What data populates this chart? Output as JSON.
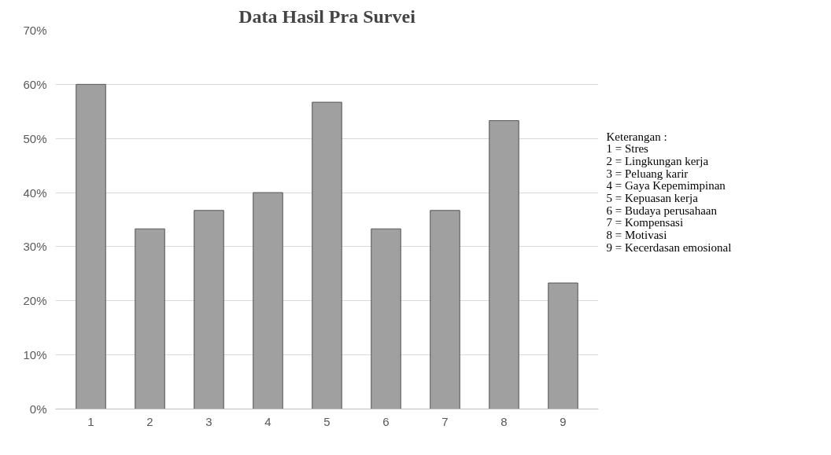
{
  "chart_data": {
    "type": "bar",
    "title": "Data Hasil Pra Survei",
    "categories": [
      "1",
      "2",
      "3",
      "4",
      "5",
      "6",
      "7",
      "8",
      "9"
    ],
    "values": [
      60,
      33.3,
      36.7,
      40,
      56.7,
      33.3,
      36.7,
      53.3,
      23.3
    ],
    "color": "#a0a0a0",
    "ylim": [
      0,
      70
    ],
    "yticks": [
      {
        "value": 0,
        "label": "0%"
      },
      {
        "value": 10,
        "label": "10%"
      },
      {
        "value": 20,
        "label": "20%"
      },
      {
        "value": 30,
        "label": "30%"
      },
      {
        "value": 40,
        "label": "40%"
      },
      {
        "value": 50,
        "label": "50%"
      },
      {
        "value": 60,
        "label": "60%"
      },
      {
        "value": 70,
        "label": "70%"
      }
    ],
    "grid": "y",
    "annotations": [
      "Keterangan :",
      "1 = Stres",
      "2 = Lingkungan kerja",
      "3 = Peluang karir",
      "4 = Gaya Kepemimpinan",
      "5 = Kepuasan kerja",
      "6 = Budaya perusahaan",
      "7 = Kompensasi",
      "8 = Motivasi",
      "9 = Kecerdasan emosional"
    ]
  }
}
